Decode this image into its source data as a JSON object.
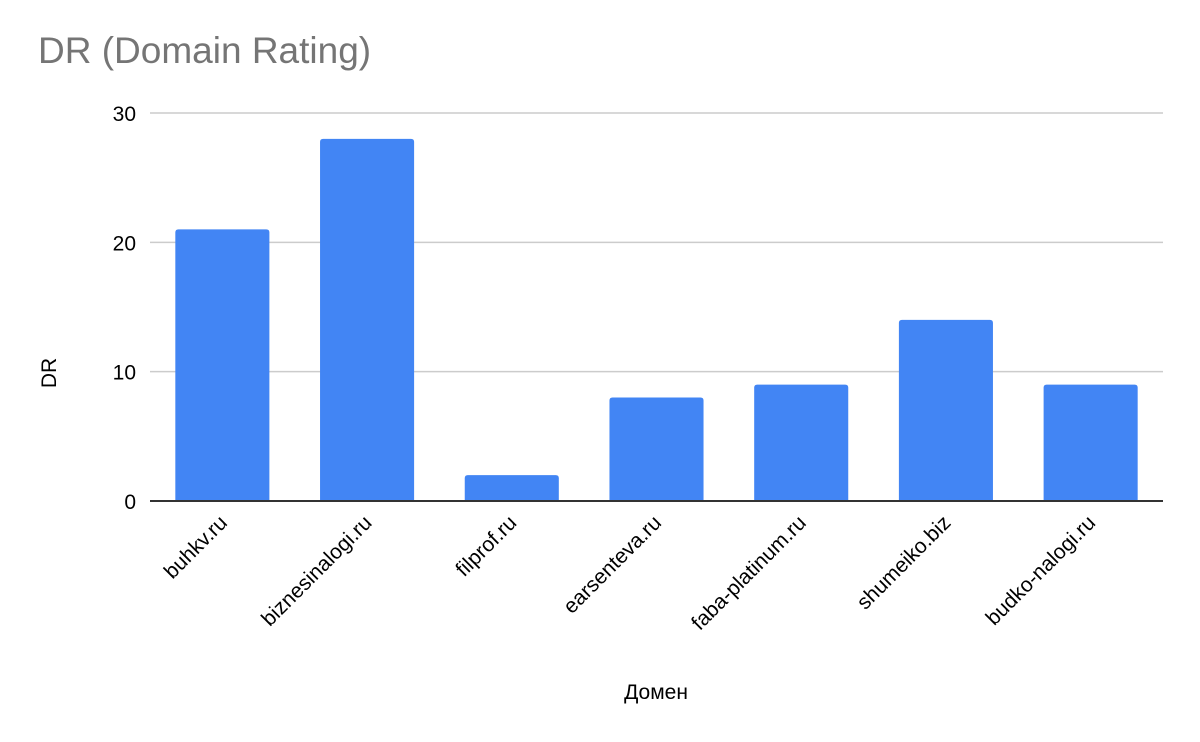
{
  "chart_data": {
    "type": "bar",
    "title": "DR (Domain Rating)",
    "xlabel": "Домен",
    "ylabel": "DR",
    "categories": [
      "buhkv.ru",
      "biznesinalogi.ru",
      "filprof.ru",
      "earsenteva.ru",
      "faba-platinum.ru",
      "shumeiko.biz",
      "budko-nalogi.ru"
    ],
    "series": [
      {
        "values": [
          21,
          28,
          2,
          8,
          9,
          14,
          9
        ]
      }
    ],
    "ylim": [
      0,
      30
    ],
    "yticks": [
      "0",
      "10",
      "20",
      "30"
    ],
    "grid": true,
    "legend": "none",
    "bar_color": "#4285f4",
    "title_color": "#757575",
    "gridline_color": "#cccccc",
    "axis_color": "#333333"
  }
}
